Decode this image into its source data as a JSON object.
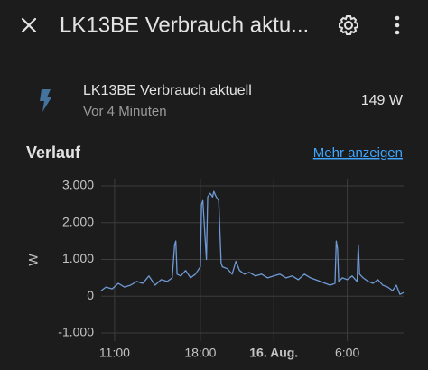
{
  "header": {
    "title": "LK13BE Verbrauch aktu..."
  },
  "entity": {
    "name": "LK13BE Verbrauch aktuell",
    "last_changed": "Vor 4 Minuten",
    "state": "149 W"
  },
  "history": {
    "title": "Verlauf",
    "link": "Mehr anzeigen"
  },
  "chart_data": {
    "type": "line",
    "ylabel": "W",
    "x": [
      9.9,
      10.3,
      10.8,
      11.3,
      11.8,
      12.3,
      12.8,
      13.3,
      13.8,
      14.3,
      14.8,
      15.3,
      15.7,
      15.9,
      16.0,
      16.1,
      16.4,
      16.8,
      17.2,
      17.6,
      18.0,
      18.1,
      18.2,
      18.5,
      18.6,
      18.8,
      19.0,
      19.1,
      19.3,
      19.5,
      19.7,
      19.8,
      20.2,
      20.6,
      20.9,
      21.2,
      21.6,
      22.0,
      22.5,
      23.0,
      23.5,
      24.0,
      24.5,
      25.0,
      25.5,
      26.0,
      26.5,
      27.0,
      27.4,
      27.8,
      28.2,
      28.6,
      29.0,
      29.1,
      29.2,
      29.3,
      29.6,
      30.0,
      30.4,
      30.8,
      30.9,
      31.0,
      31.3,
      31.7,
      32.1,
      32.5,
      32.9,
      33.3,
      33.7,
      34.0,
      34.3,
      34.6
    ],
    "series": [
      {
        "color": "#6f9ad6",
        "values": [
          150,
          250,
          200,
          350,
          250,
          300,
          400,
          350,
          550,
          300,
          450,
          400,
          500,
          1400,
          1500,
          600,
          550,
          700,
          500,
          600,
          800,
          2500,
          2600,
          1000,
          2700,
          2800,
          2700,
          2850,
          2700,
          2600,
          900,
          800,
          750,
          600,
          950,
          700,
          600,
          650,
          550,
          600,
          500,
          550,
          600,
          500,
          550,
          450,
          600,
          500,
          450,
          400,
          350,
          300,
          350,
          1500,
          1300,
          400,
          500,
          450,
          550,
          400,
          1400,
          600,
          500,
          400,
          350,
          450,
          300,
          250,
          150,
          300,
          50,
          100
        ]
      }
    ],
    "xlim": [
      9.9,
      34.6
    ],
    "xticks": [
      {
        "value": 11,
        "label": "11:00"
      },
      {
        "value": 18,
        "label": "18:00"
      },
      {
        "value": 24,
        "label": "16. Aug."
      },
      {
        "value": 30,
        "label": "6:00"
      }
    ],
    "ylim": [
      -1000,
      3000
    ],
    "yticks": [
      {
        "value": 3000,
        "label": "3.000"
      },
      {
        "value": 2000,
        "label": "2.000"
      },
      {
        "value": 1000,
        "label": "1.000"
      },
      0,
      {
        "value": -1000,
        "label": "-1.000"
      }
    ],
    "grid": true
  }
}
